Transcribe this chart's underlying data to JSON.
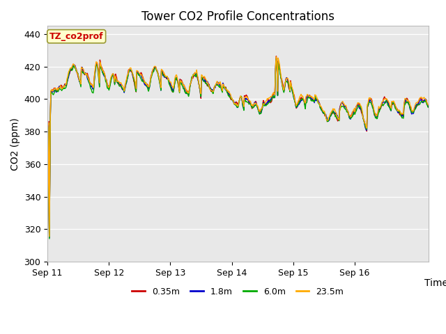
{
  "title": "Tower CO2 Profile Concentrations",
  "ylabel": "CO2 (ppm)",
  "xlabel": "Time",
  "ylim": [
    300,
    445
  ],
  "yticks": [
    300,
    320,
    340,
    360,
    380,
    400,
    420,
    440
  ],
  "x_labels": [
    "Sep 11",
    "Sep 12",
    "Sep 13",
    "Sep 14",
    "Sep 15",
    "Sep 16"
  ],
  "legend_label": "TZ_co2prof",
  "series_labels": [
    "0.35m",
    "1.8m",
    "6.0m",
    "23.5m"
  ],
  "series_colors": [
    "#cc0000",
    "#0000cc",
    "#00aa00",
    "#ffaa00"
  ],
  "plot_bg": "#e8e8e8",
  "linewidth": 1.0,
  "title_fontsize": 12,
  "axis_fontsize": 10,
  "tick_fontsize": 9,
  "legend_fontsize": 9
}
